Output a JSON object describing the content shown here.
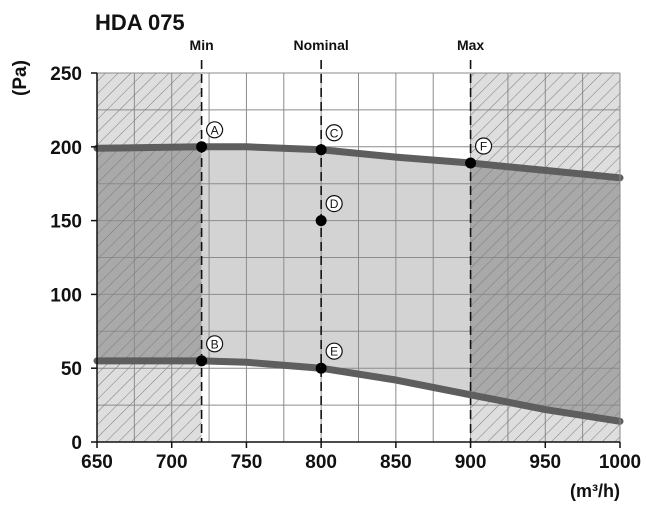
{
  "chart_data": {
    "type": "line",
    "title": "HDA 075",
    "ylabel": "(Pa)",
    "xlabel": "(m³/h)",
    "xlim": [
      650,
      1000
    ],
    "ylim": [
      0,
      250
    ],
    "xticks": [
      650,
      700,
      750,
      800,
      850,
      900,
      950,
      1000
    ],
    "yticks": [
      0,
      50,
      100,
      150,
      200,
      250
    ],
    "grid": true,
    "vlines": [
      {
        "label": "Min",
        "x": 720
      },
      {
        "label": "Nominal",
        "x": 800
      },
      {
        "label": "Max",
        "x": 900
      }
    ],
    "series": [
      {
        "values_x": [
          650,
          720,
          750,
          800,
          850,
          900,
          950,
          1000
        ],
        "values_y": [
          199,
          200,
          200,
          198,
          193,
          189,
          184,
          179
        ]
      },
      {
        "values_x": [
          650,
          720,
          750,
          800,
          850,
          900,
          950,
          1000
        ],
        "values_y": [
          55,
          55,
          54,
          50,
          42,
          32,
          22,
          14
        ]
      }
    ],
    "points": [
      {
        "label": "A",
        "x": 720,
        "y": 200
      },
      {
        "label": "B",
        "x": 720,
        "y": 55
      },
      {
        "label": "C",
        "x": 800,
        "y": 198
      },
      {
        "label": "D",
        "x": 800,
        "y": 150
      },
      {
        "label": "E",
        "x": 800,
        "y": 50
      },
      {
        "label": "F",
        "x": 900,
        "y": 189
      }
    ],
    "colors": {
      "operating_area": "#d3d3d3",
      "outside_min_max": "#a9a9a9",
      "outside_light": "#dedede",
      "curve": "#5e5e5e",
      "grid": "#8c8c8c"
    }
  }
}
